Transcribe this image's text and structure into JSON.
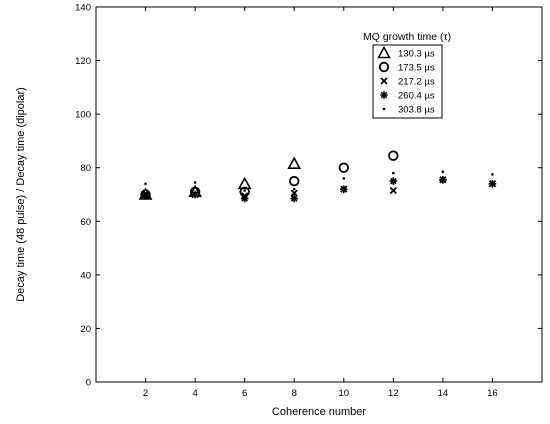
{
  "chart_data": {
    "type": "scatter",
    "xlabel": "Coherence number",
    "ylabel": "Decay time (48 pulse) / Decay time (dipolar)",
    "xlim": [
      0,
      18
    ],
    "ylim": [
      0,
      140
    ],
    "xticks": [
      2,
      4,
      6,
      8,
      10,
      12,
      14,
      16
    ],
    "yticks": [
      0,
      20,
      40,
      60,
      80,
      100,
      120,
      140
    ],
    "grid": false,
    "legend_title": "MQ growth time (τ)",
    "legend_position": "top-right",
    "series": [
      {
        "name": "130.3 µs",
        "marker": "triangle",
        "x": [
          2,
          4,
          6,
          8
        ],
        "y": [
          70,
          71,
          74,
          81.5
        ]
      },
      {
        "name": "173.5 µs",
        "marker": "circle",
        "x": [
          2,
          4,
          6,
          8,
          10,
          12
        ],
        "y": [
          70,
          71,
          71,
          75,
          80,
          84.5
        ]
      },
      {
        "name": "217.2 µs",
        "marker": "x",
        "x": [
          2,
          4,
          6,
          8,
          10,
          12,
          14,
          16
        ],
        "y": [
          70,
          70,
          69.5,
          70.5,
          72,
          71.5,
          75.5,
          74
        ]
      },
      {
        "name": "260.4 µs",
        "marker": "asterisk",
        "x": [
          2,
          4,
          6,
          8,
          10,
          12,
          14,
          16
        ],
        "y": [
          69.5,
          70,
          68.5,
          68.5,
          72,
          75,
          75.5,
          74
        ]
      },
      {
        "name": "303.8 µs",
        "marker": "dot",
        "x": [
          2,
          4,
          6,
          8,
          10,
          12,
          14,
          16
        ],
        "y": [
          74,
          74.5,
          71.5,
          72,
          76,
          78,
          78.5,
          77.5
        ]
      }
    ]
  }
}
